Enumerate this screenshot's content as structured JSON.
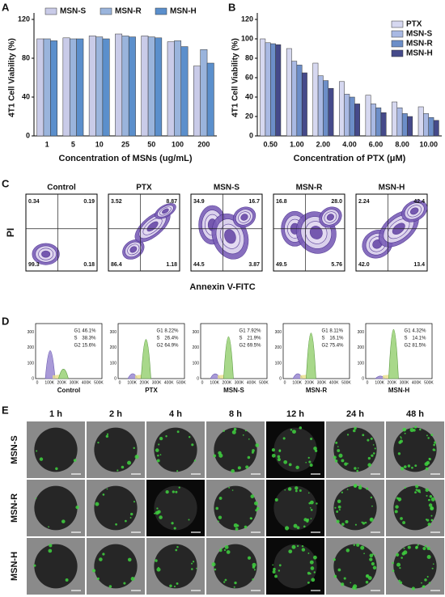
{
  "panel_labels": [
    "A",
    "B",
    "C",
    "D",
    "E"
  ],
  "chart_data": [
    {
      "type": "bar",
      "categories": [
        "1",
        "5",
        "10",
        "25",
        "50",
        "100",
        "200"
      ],
      "series": [
        {
          "name": "MSN-S",
          "color": "#c9cbe8",
          "values": [
            100,
            101,
            103,
            105,
            103,
            97,
            72
          ]
        },
        {
          "name": "MSN-R",
          "color": "#9ab4dc",
          "values": [
            100,
            100,
            102,
            103,
            102,
            98,
            89
          ]
        },
        {
          "name": "MSN-H",
          "color": "#5b8fcc",
          "values": [
            98,
            100,
            100,
            102,
            101,
            92,
            75
          ]
        }
      ],
      "ylim": [
        0,
        120
      ],
      "yticks": [
        0,
        40,
        80,
        120
      ],
      "ylabel": "4T1 Cell Viability (%)",
      "xlabel": "Concentration of MSNs (ug/mL)",
      "legend": "top"
    },
    {
      "type": "bar",
      "categories": [
        "0.50",
        "1.00",
        "2.00",
        "4.00",
        "6.00",
        "8.00",
        "10.00"
      ],
      "series": [
        {
          "name": "PTX",
          "color": "#d6d8f0",
          "values": [
            100,
            90,
            75,
            56,
            42,
            35,
            30
          ]
        },
        {
          "name": "MSN-S",
          "color": "#a9b9e3",
          "values": [
            96,
            77,
            62,
            43,
            33,
            29,
            23
          ]
        },
        {
          "name": "MSN-R",
          "color": "#6c8ec8",
          "values": [
            95,
            73,
            57,
            40,
            29,
            23,
            19
          ]
        },
        {
          "name": "MSN-H",
          "color": "#454a8a",
          "values": [
            94,
            65,
            49,
            33,
            24,
            20,
            16
          ]
        }
      ],
      "ylim": [
        0,
        120
      ],
      "yticks": [
        0,
        20,
        40,
        60,
        80,
        100,
        120
      ],
      "ylabel": "4T1 Cell Viability (%)",
      "xlabel": "Concentration of PTX (μM)",
      "legend": "top-right"
    }
  ],
  "flow": {
    "ylabel": "PI",
    "xlabel": "Annexin V-FITC",
    "panels": [
      {
        "title": "Control",
        "quadrants": [
          "0.34",
          "0.19",
          "99.3",
          "0.18"
        ]
      },
      {
        "title": "PTX",
        "quadrants": [
          "3.52",
          "8.87",
          "86.4",
          "1.18"
        ]
      },
      {
        "title": "MSN-S",
        "quadrants": [
          "34.9",
          "16.7",
          "44.5",
          "3.87"
        ]
      },
      {
        "title": "MSN-R",
        "quadrants": [
          "16.8",
          "28.0",
          "49.5",
          "5.76"
        ]
      },
      {
        "title": "MSN-H",
        "quadrants": [
          "2.24",
          "42.4",
          "42.0",
          "13.4"
        ]
      }
    ]
  },
  "cell_cycle": {
    "yticks": [
      "0",
      "100",
      "200",
      "300"
    ],
    "xticks": [
      "0",
      "100K",
      "200K",
      "300K",
      "400K",
      "500K"
    ],
    "panels": [
      {
        "title": "Control",
        "phases": [
          [
            "G1",
            "46.1%"
          ],
          [
            "S",
            "38.3%"
          ],
          [
            "G2",
            "15.6%"
          ]
        ]
      },
      {
        "title": "PTX",
        "phases": [
          [
            "G1",
            "8.22%"
          ],
          [
            "S",
            "26.4%"
          ],
          [
            "G2",
            "64.9%"
          ]
        ]
      },
      {
        "title": "MSN-S",
        "phases": [
          [
            "G1",
            "7.92%"
          ],
          [
            "S",
            "21.9%"
          ],
          [
            "G2",
            "69.5%"
          ]
        ]
      },
      {
        "title": "MSN-R",
        "phases": [
          [
            "G1",
            "8.11%"
          ],
          [
            "S",
            "16.1%"
          ],
          [
            "G2",
            "75.4%"
          ]
        ]
      },
      {
        "title": "MSN-H",
        "phases": [
          [
            "G1",
            "4.32%"
          ],
          [
            "S",
            "14.1%"
          ],
          [
            "G2",
            "81.5%"
          ]
        ]
      }
    ]
  },
  "imaging": {
    "times": [
      "1 h",
      "2 h",
      "4 h",
      "8 h",
      "12 h",
      "24 h",
      "48 h"
    ],
    "rows": [
      "MSN-S",
      "MSN-R",
      "MSN-H"
    ]
  }
}
